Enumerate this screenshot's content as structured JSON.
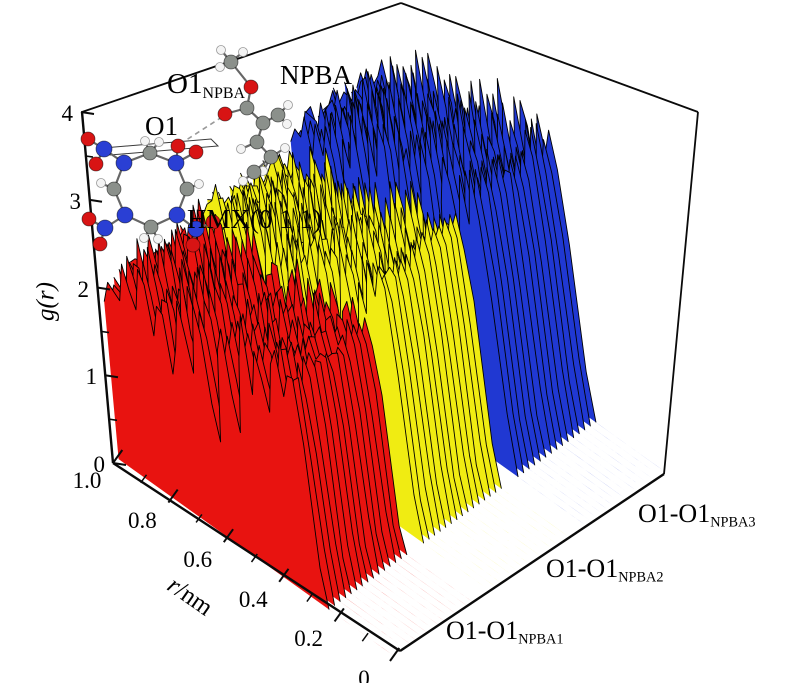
{
  "figure": {
    "background": "#ffffff",
    "inset": {
      "labels": {
        "o1_npba_main": "O1",
        "o1_npba_sub": "NPBA",
        "npba": "NPBA",
        "o1": "O1",
        "hmx": "HMX(0 1 1)"
      },
      "atom_colors": {
        "C": "#8b908b",
        "N": "#2a3fd4",
        "O": "#d81414",
        "H": "#f4f4f4"
      },
      "atom_radii": {
        "C": 7,
        "N": 8,
        "O": 7,
        "H": 4.5
      },
      "hmx": {
        "atoms": [
          [
            150,
            153,
            "C"
          ],
          [
            176,
            163,
            "N"
          ],
          [
            187,
            189,
            "C"
          ],
          [
            177,
            215,
            "N"
          ],
          [
            151,
            227,
            "C"
          ],
          [
            125,
            215,
            "N"
          ],
          [
            114,
            189,
            "C"
          ],
          [
            124,
            163,
            "N"
          ],
          [
            178,
            146,
            "O"
          ],
          [
            196,
            152,
            "O"
          ],
          [
            104,
            149,
            "N"
          ],
          [
            88,
            139,
            "O"
          ],
          [
            96,
            164,
            "O"
          ],
          [
            105,
            228,
            "N"
          ],
          [
            89,
            219,
            "O"
          ],
          [
            100,
            244,
            "O"
          ],
          [
            196,
            229,
            "N"
          ],
          [
            213,
            222,
            "O"
          ],
          [
            193,
            245,
            "O"
          ],
          [
            145,
            141,
            "H"
          ],
          [
            159,
            142,
            "H"
          ],
          [
            199,
            184,
            "H"
          ],
          [
            144,
            238,
            "H"
          ],
          [
            158,
            239,
            "H"
          ],
          [
            101,
            183,
            "H"
          ]
        ],
        "bonds": [
          [
            0,
            1
          ],
          [
            1,
            2
          ],
          [
            2,
            3
          ],
          [
            3,
            4
          ],
          [
            4,
            5
          ],
          [
            5,
            6
          ],
          [
            6,
            7
          ],
          [
            7,
            0
          ],
          [
            1,
            8
          ],
          [
            1,
            9
          ],
          [
            7,
            10
          ],
          [
            10,
            11
          ],
          [
            10,
            12
          ],
          [
            5,
            13
          ],
          [
            13,
            14
          ],
          [
            13,
            15
          ],
          [
            3,
            16
          ],
          [
            16,
            17
          ],
          [
            16,
            18
          ],
          [
            0,
            19
          ],
          [
            0,
            20
          ],
          [
            2,
            21
          ],
          [
            4,
            22
          ],
          [
            4,
            23
          ],
          [
            6,
            24
          ]
        ]
      },
      "npba_fragment": {
        "atoms": [
          [
            231,
            62,
            "C"
          ],
          [
            221,
            50,
            "H"
          ],
          [
            243,
            52,
            "H"
          ],
          [
            220,
            67,
            "H"
          ],
          [
            251,
            87,
            "O"
          ],
          [
            247,
            108,
            "C"
          ],
          [
            225,
            114,
            "O"
          ],
          [
            263,
            123,
            "C"
          ],
          [
            278,
            115,
            "C"
          ],
          [
            288,
            105,
            "H"
          ],
          [
            287,
            124,
            "H"
          ],
          [
            257,
            142,
            "C"
          ],
          [
            241,
            149,
            "H"
          ],
          [
            271,
            157,
            "C"
          ],
          [
            285,
            148,
            "H"
          ],
          [
            263,
            171,
            "H"
          ],
          [
            254,
            172,
            "C"
          ],
          [
            243,
            181,
            "H"
          ]
        ],
        "bonds": [
          [
            0,
            1
          ],
          [
            0,
            2
          ],
          [
            0,
            3
          ],
          [
            0,
            4
          ],
          [
            4,
            5
          ],
          [
            5,
            6
          ],
          [
            5,
            7
          ],
          [
            7,
            8
          ],
          [
            8,
            9
          ],
          [
            8,
            10
          ],
          [
            7,
            11
          ],
          [
            11,
            12
          ],
          [
            11,
            13
          ],
          [
            13,
            14
          ],
          [
            13,
            15
          ],
          [
            13,
            16
          ],
          [
            16,
            17
          ]
        ]
      },
      "plane_outline": [
        [
          103,
          148
        ],
        [
          211,
          139
        ],
        [
          218,
          146
        ],
        [
          110,
          155
        ]
      ],
      "hydrogen_bond": {
        "from": [
          180,
          144
        ],
        "to": [
          222,
          117
        ],
        "color": "#999999"
      }
    },
    "axes": {
      "g": {
        "label": "g(r)",
        "ticks": [
          "0",
          "1",
          "2",
          "3",
          "4"
        ],
        "min": 0,
        "max": 4
      },
      "r": {
        "label_italic": "r",
        "label_rest": "/nm",
        "ticks": [
          "1.0",
          "0.8",
          "0.6",
          "0.4",
          "0.2",
          "0"
        ],
        "min": 0,
        "max": 1.0
      }
    }
  },
  "chart_data": {
    "type": "line",
    "subtype": "3d-waterfall-rdf",
    "title": "",
    "xlabel": "r/nm",
    "ylabel": "g(r)",
    "xlim": [
      0,
      1.0
    ],
    "ylim": [
      0,
      4
    ],
    "grid": false,
    "x": [
      0,
      0.02,
      0.04,
      0.06,
      0.08,
      0.1,
      0.12,
      0.14,
      0.16,
      0.18,
      0.2,
      0.22,
      0.24,
      0.26,
      0.28,
      0.3,
      0.32,
      0.34,
      0.36,
      0.38,
      0.4,
      0.42,
      0.44,
      0.46,
      0.48,
      0.5,
      0.52,
      0.54,
      0.56,
      0.58,
      0.6,
      0.62,
      0.64,
      0.66,
      0.68,
      0.7,
      0.72,
      0.74,
      0.76,
      0.78,
      0.8,
      0.82,
      0.84,
      0.86,
      0.88,
      0.9,
      0.92,
      0.94,
      0.96,
      0.98,
      1.0
    ],
    "series": [
      {
        "name": "O1-O1_NPBA1",
        "label_main": "O1-O1",
        "label_sub": "NPBA1",
        "color": "#e81310",
        "values": [
          0,
          0,
          0,
          0,
          0,
          0,
          0,
          0,
          0,
          0,
          0,
          0,
          0,
          0.45,
          1.7,
          2.35,
          2.5,
          2.2,
          2.6,
          2.4,
          1.8,
          2.3,
          2.55,
          2.1,
          2.65,
          2.3,
          1.35,
          1.9,
          2.5,
          2.2,
          1.0,
          1.55,
          2.3,
          2.45,
          1.75,
          2.2,
          2.6,
          2.0,
          1.45,
          2.1,
          2.35,
          1.7,
          2.25,
          2.5,
          1.9,
          2.15,
          2.4,
          1.85,
          2.05,
          1.95,
          1.9
        ]
      },
      {
        "name": "O1-O1_NPBA2",
        "label_main": "O1-O1",
        "label_sub": "NPBA2",
        "color": "#f0ec12",
        "values": [
          0,
          0,
          0,
          0,
          0,
          0,
          0,
          0,
          0,
          0,
          0,
          0,
          0,
          0.5,
          1.9,
          2.7,
          3.0,
          2.6,
          2.85,
          2.3,
          2.7,
          2.0,
          2.5,
          2.9,
          2.2,
          1.5,
          2.4,
          2.75,
          2.1,
          0.95,
          1.8,
          2.5,
          2.2,
          2.65,
          1.6,
          2.3,
          2.0,
          2.55,
          1.7,
          2.25,
          2.45,
          1.85,
          2.1,
          2.4,
          1.75,
          2.2,
          2.0,
          2.3,
          2.1,
          2.0,
          2.0
        ]
      },
      {
        "name": "O1-O1_NPBA3",
        "label_main": "O1-O1",
        "label_sub": "NPBA3",
        "color": "#2038d2",
        "values": [
          0,
          0,
          0,
          0,
          0,
          0,
          0,
          0,
          0,
          0,
          0,
          0,
          0,
          0.6,
          2.0,
          2.9,
          3.2,
          2.7,
          3.1,
          2.4,
          2.9,
          3.25,
          2.6,
          1.6,
          2.8,
          3.3,
          2.5,
          0.95,
          2.2,
          3.0,
          2.55,
          1.35,
          2.7,
          3.15,
          2.3,
          2.85,
          1.8,
          2.5,
          3.0,
          2.15,
          2.6,
          1.6,
          2.35,
          2.75,
          2.05,
          2.5,
          2.2,
          2.45,
          2.25,
          2.3,
          2.2
        ]
      }
    ]
  }
}
